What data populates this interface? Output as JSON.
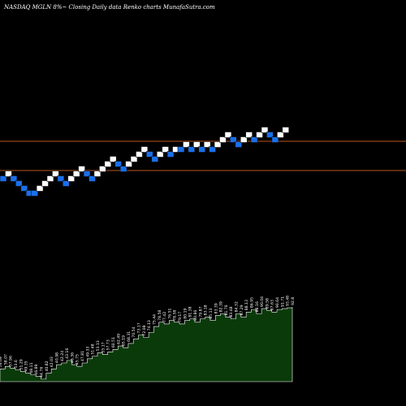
{
  "header": {
    "title": "NASDAQ MGLN  8%~  Closing Daily data  Renko  charts MunafaSutra.com"
  },
  "colors": {
    "background": "#000000",
    "up_brick": "#ffffff",
    "down_brick": "#1a6fe8",
    "brick_border": "#0a0a0a",
    "level_line": "#b8581f",
    "volume_fill": "#0a3a0a",
    "volume_line": "#ffffff"
  },
  "chart_data": {
    "type": "renko",
    "title": "NASDAQ MGLN  8%~  Closing Daily data  Renko  charts MunafaSutra.com",
    "grid": false,
    "levels": [
      174,
      210
    ],
    "bricks": [
      {
        "y": 220,
        "dir": "down"
      },
      {
        "y": 214,
        "dir": "up"
      },
      {
        "y": 220,
        "dir": "down"
      },
      {
        "y": 226,
        "dir": "down"
      },
      {
        "y": 232,
        "dir": "down"
      },
      {
        "y": 238,
        "dir": "down"
      },
      {
        "y": 238,
        "dir": "down"
      },
      {
        "y": 232,
        "dir": "up"
      },
      {
        "y": 226,
        "dir": "up"
      },
      {
        "y": 220,
        "dir": "up"
      },
      {
        "y": 214,
        "dir": "up"
      },
      {
        "y": 220,
        "dir": "down"
      },
      {
        "y": 226,
        "dir": "down"
      },
      {
        "y": 220,
        "dir": "up"
      },
      {
        "y": 214,
        "dir": "up"
      },
      {
        "y": 208,
        "dir": "up"
      },
      {
        "y": 214,
        "dir": "down"
      },
      {
        "y": 220,
        "dir": "down"
      },
      {
        "y": 214,
        "dir": "up"
      },
      {
        "y": 208,
        "dir": "up"
      },
      {
        "y": 202,
        "dir": "up"
      },
      {
        "y": 196,
        "dir": "up"
      },
      {
        "y": 202,
        "dir": "down"
      },
      {
        "y": 208,
        "dir": "down"
      },
      {
        "y": 202,
        "dir": "up"
      },
      {
        "y": 196,
        "dir": "up"
      },
      {
        "y": 190,
        "dir": "up"
      },
      {
        "y": 184,
        "dir": "up"
      },
      {
        "y": 190,
        "dir": "down"
      },
      {
        "y": 196,
        "dir": "down"
      },
      {
        "y": 190,
        "dir": "up"
      },
      {
        "y": 184,
        "dir": "up"
      },
      {
        "y": 190,
        "dir": "down"
      },
      {
        "y": 184,
        "dir": "up"
      },
      {
        "y": 184,
        "dir": "down"
      },
      {
        "y": 178,
        "dir": "up"
      },
      {
        "y": 184,
        "dir": "down"
      },
      {
        "y": 178,
        "dir": "up"
      },
      {
        "y": 184,
        "dir": "down"
      },
      {
        "y": 178,
        "dir": "up"
      },
      {
        "y": 184,
        "dir": "down"
      },
      {
        "y": 178,
        "dir": "up"
      },
      {
        "y": 172,
        "dir": "up"
      },
      {
        "y": 166,
        "dir": "up"
      },
      {
        "y": 172,
        "dir": "down"
      },
      {
        "y": 178,
        "dir": "down"
      },
      {
        "y": 172,
        "dir": "up"
      },
      {
        "y": 166,
        "dir": "up"
      },
      {
        "y": 172,
        "dir": "down"
      },
      {
        "y": 166,
        "dir": "up"
      },
      {
        "y": 160,
        "dir": "up"
      },
      {
        "y": 166,
        "dir": "down"
      },
      {
        "y": 172,
        "dir": "down"
      },
      {
        "y": 166,
        "dir": "up"
      },
      {
        "y": 160,
        "dir": "up"
      }
    ],
    "volume": {
      "values": [
        15,
        18,
        16,
        14,
        12,
        10,
        8,
        6,
        3,
        10,
        15,
        20,
        22,
        25,
        20,
        18,
        22,
        27,
        30,
        34,
        32,
        35,
        38,
        42,
        40,
        45,
        50,
        55,
        52,
        58,
        65,
        70,
        68,
        72,
        70,
        68,
        72,
        74,
        70,
        74,
        76,
        72,
        78,
        80,
        76,
        74,
        80,
        76,
        82,
        85,
        80,
        86,
        84,
        82,
        85,
        86,
        87,
        88
      ],
      "labels": [
        "56.09",
        "58.07",
        "57.96",
        "53.6",
        "51.29",
        "49.35",
        "48.11",
        "46.89",
        "44.76",
        "40.82",
        "42.03",
        "40.98",
        "42.24",
        "43.16",
        "46.36",
        "45.75",
        "47.81",
        "49.33",
        "51.48",
        "53.13",
        "55.17",
        "57.73",
        "60.51",
        "62.49",
        "65.19",
        "68.31",
        "70.54",
        "73.17",
        "72.08",
        "74.13",
        "75.44",
        "78.58",
        "77.42",
        "76.51",
        "78.58",
        "79.17",
        "80.19",
        "81.38",
        "80.86",
        "79.87",
        "83.18",
        "85.13",
        "83.39",
        "82.39",
        "81.76",
        "83.48",
        "84.32",
        "87.29",
        "88.13",
        "86.95",
        "88.16",
        "90.04",
        "89.58",
        "87.63",
        "90.64",
        "91.71",
        "93.48",
        "92.8"
      ]
    }
  }
}
